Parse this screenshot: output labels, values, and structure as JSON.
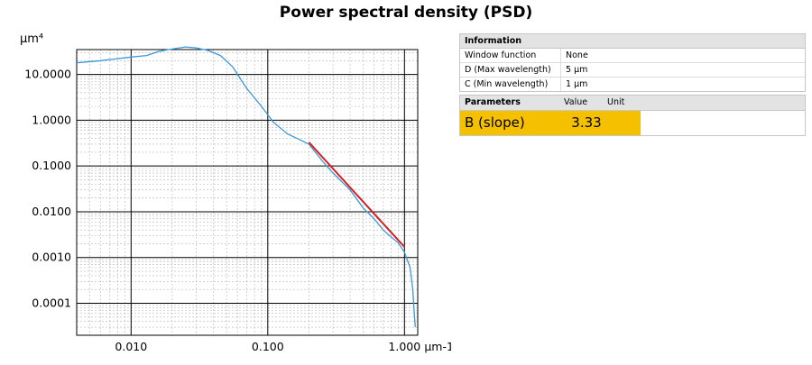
{
  "title": "Power spectral density (PSD)",
  "chart_data": {
    "type": "line",
    "title": "Power spectral density (PSD)",
    "ylabel": "µm⁴",
    "xlabel": "µm-1",
    "xscale": "log",
    "yscale": "log",
    "xlim": [
      0.004,
      1.25
    ],
    "ylim": [
      2e-05,
      35
    ],
    "x_ticks": [
      0.01,
      0.1,
      1.0
    ],
    "x_tick_labels": [
      "0.010",
      "0.100",
      "1.000"
    ],
    "y_ticks": [
      10,
      1,
      0.1,
      0.01,
      0.001,
      0.0001
    ],
    "y_tick_labels": [
      "10.0000",
      "1.0000",
      "0.1000",
      "0.0100",
      "0.0010",
      "0.0001"
    ],
    "grid": true,
    "series": [
      {
        "color": "#3a9ad9",
        "x": [
          0.004,
          0.006,
          0.01,
          0.013,
          0.016,
          0.02,
          0.025,
          0.03,
          0.037,
          0.045,
          0.055,
          0.07,
          0.09,
          0.11,
          0.14,
          0.18,
          0.2,
          0.25,
          0.3,
          0.4,
          0.5,
          0.6,
          0.7,
          0.8,
          0.9,
          1.0,
          1.1,
          1.15,
          1.18,
          1.2
        ],
        "y": [
          18,
          20,
          24,
          26,
          32,
          36,
          40,
          38,
          33,
          26,
          15,
          5,
          2.0,
          0.9,
          0.5,
          0.35,
          0.3,
          0.13,
          0.07,
          0.03,
          0.012,
          0.007,
          0.004,
          0.0028,
          0.0021,
          0.0013,
          0.0006,
          0.0002,
          6e-05,
          3e-05
        ]
      },
      {
        "color": "#d42020",
        "x": [
          0.2,
          1.0
        ],
        "y": [
          0.33,
          0.0017
        ]
      }
    ]
  },
  "info": {
    "header": "Information",
    "rows": [
      {
        "label": "Window function",
        "value": "None"
      },
      {
        "label": "D (Max wavelength)",
        "value": "5 µm"
      },
      {
        "label": "C (Min wavelength)",
        "value": "1 µm"
      }
    ]
  },
  "parameters": {
    "header": "Parameters",
    "col_value": "Value",
    "col_unit": "Unit",
    "row": {
      "name": "B (slope)",
      "value": "3.33",
      "unit": ""
    }
  },
  "colors": {
    "highlight": "#f5c000",
    "header_bg": "#e3e3e3"
  }
}
